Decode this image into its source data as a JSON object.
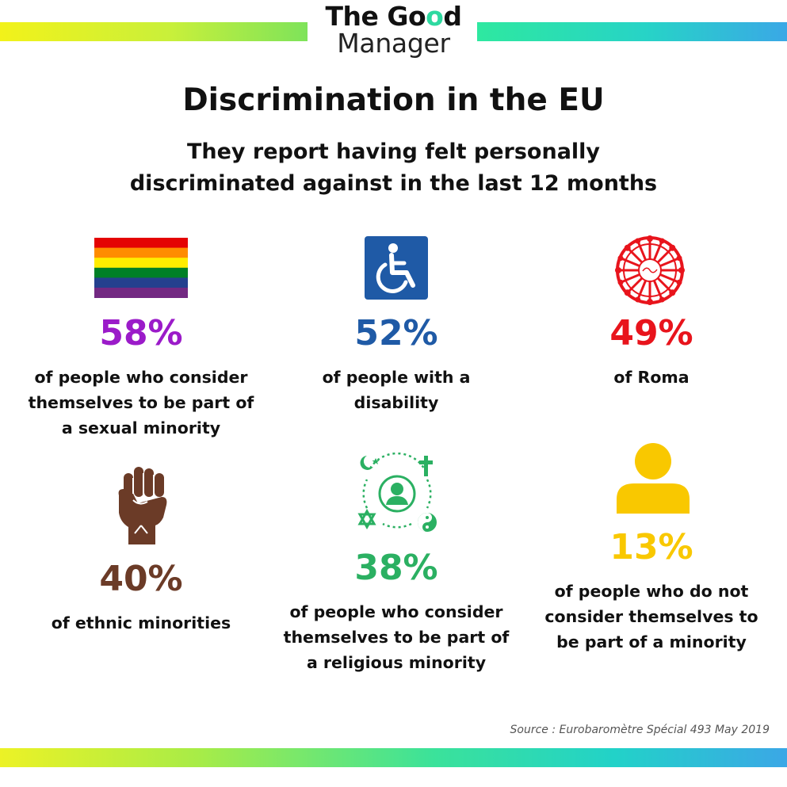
{
  "logo": {
    "line1_prefix": "The Go",
    "line1_o": "o",
    "line1_suffix": "d",
    "line2": "Manager"
  },
  "title": "Discrimination in the EU",
  "subtitle_line1": "They report having felt personally",
  "subtitle_line2": "discriminated against in the last 12 months",
  "stats": [
    {
      "percent": "58%",
      "desc": [
        "of people who consider",
        "themselves to be part of",
        "a sexual minority"
      ],
      "color": "#9b1bc9",
      "icon": "rainbow-flag-icon"
    },
    {
      "percent": "52%",
      "desc": [
        "of people with a",
        "disability"
      ],
      "color": "#1f5aa6",
      "icon": "wheelchair-icon"
    },
    {
      "percent": "49%",
      "desc": [
        "of Roma"
      ],
      "color": "#e8141c",
      "icon": "romani-chakra-icon"
    },
    {
      "percent": "40%",
      "desc": [
        "of ethnic minorities"
      ],
      "color": "#6b3b27",
      "icon": "raised-fist-icon"
    },
    {
      "percent": "38%",
      "desc": [
        "of people who consider",
        "themselves to be part of",
        "a religious minority"
      ],
      "color": "#2bb062",
      "icon": "religious-symbols-icon"
    },
    {
      "percent": "13%",
      "desc": [
        "of people who do not",
        "consider themselves to",
        "be part of a minority"
      ],
      "color": "#f9c800",
      "icon": "person-icon"
    }
  ],
  "source": "Source : Eurobaromètre Spécial 493 May 2019"
}
